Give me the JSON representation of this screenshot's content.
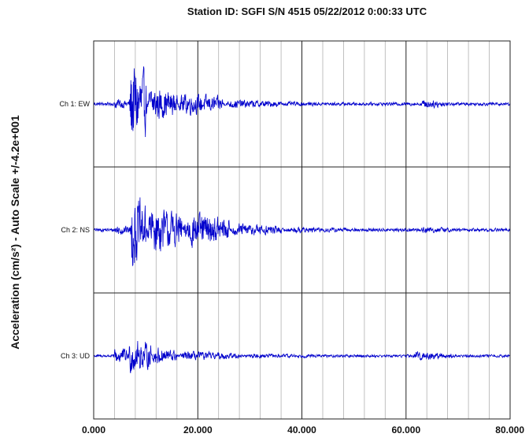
{
  "chart_data": {
    "type": "line",
    "title": "Station ID: SGFI S/N 4515   05/22/2012 0:00:33 UTC",
    "ylabel": "Acceleration (cm/s²) - Auto Scale +/-4.2e+001",
    "xlim": [
      0,
      80000
    ],
    "x_ticks": [
      "0.000",
      "20.000",
      "40.000",
      "60.000",
      "80.000"
    ],
    "grid": true,
    "minor_x_step": 4000,
    "line_color": "#0000cc",
    "channels": [
      {
        "label": "Ch 1: EW",
        "noise": 1.5,
        "bursts": [
          {
            "t0": 3800,
            "t1": 6800,
            "amp": 5
          },
          {
            "t0": 6800,
            "t1": 10200,
            "amp": 40
          },
          {
            "t0": 10200,
            "t1": 16000,
            "amp": 16
          },
          {
            "t0": 16000,
            "t1": 25000,
            "amp": 10
          },
          {
            "t0": 25000,
            "t1": 36000,
            "amp": 4
          },
          {
            "t0": 36000,
            "t1": 48000,
            "amp": 2
          },
          {
            "t0": 62500,
            "t1": 68000,
            "amp": 4
          }
        ]
      },
      {
        "label": "Ch 2: NS",
        "noise": 1.5,
        "bursts": [
          {
            "t0": 3800,
            "t1": 7000,
            "amp": 5
          },
          {
            "t0": 7000,
            "t1": 10000,
            "amp": 33
          },
          {
            "t0": 10000,
            "t1": 17000,
            "amp": 22
          },
          {
            "t0": 17000,
            "t1": 26000,
            "amp": 16
          },
          {
            "t0": 26000,
            "t1": 36000,
            "amp": 6
          },
          {
            "t0": 36000,
            "t1": 52000,
            "amp": 2.5
          },
          {
            "t0": 62500,
            "t1": 68500,
            "amp": 3
          }
        ]
      },
      {
        "label": "Ch 3: UD",
        "noise": 1.2,
        "bursts": [
          {
            "t0": 3800,
            "t1": 6500,
            "amp": 9
          },
          {
            "t0": 6500,
            "t1": 11000,
            "amp": 16
          },
          {
            "t0": 11000,
            "t1": 16000,
            "amp": 8
          },
          {
            "t0": 16000,
            "t1": 28000,
            "amp": 4
          },
          {
            "t0": 28000,
            "t1": 45000,
            "amp": 2
          },
          {
            "t0": 61000,
            "t1": 69000,
            "amp": 4
          }
        ]
      }
    ]
  }
}
